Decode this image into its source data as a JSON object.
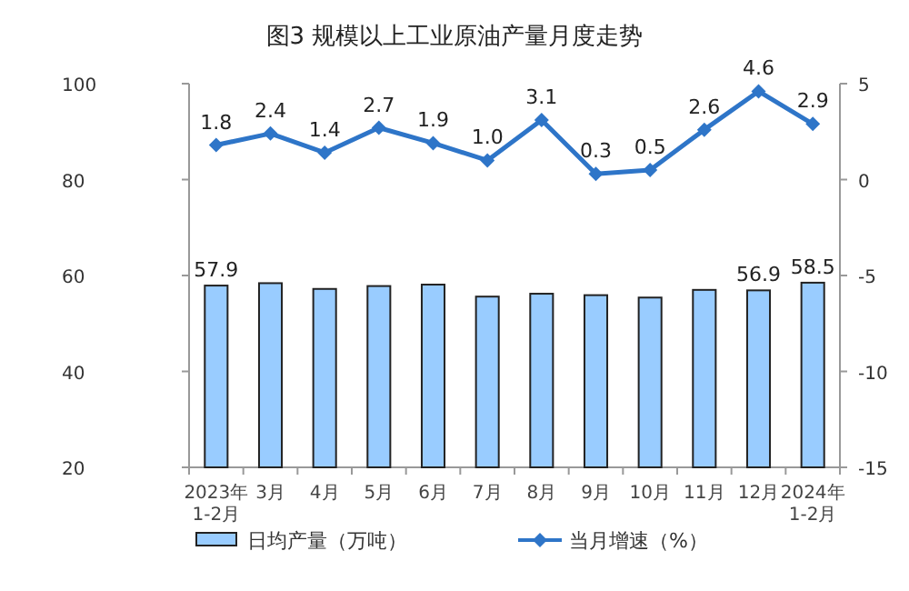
{
  "chart_data": {
    "type": "bar",
    "title": "图3  规模以上工业原油产量月度走势",
    "categories": [
      "2023年\n1-2月",
      "3月",
      "4月",
      "5月",
      "6月",
      "7月",
      "8月",
      "9月",
      "10月",
      "11月",
      "12月",
      "2024年\n1-2月"
    ],
    "ylim": [
      20,
      100
    ],
    "yticks": [
      20,
      40,
      60,
      80,
      100
    ],
    "y2lim": [
      -15,
      5
    ],
    "y2ticks": [
      -15,
      -10,
      -5,
      0,
      5
    ],
    "legend": "bottom",
    "marker": "diamond",
    "series": [
      {
        "name": "日均产量（万吨）",
        "color": "#99ccff",
        "values": [
          57.9,
          58.4,
          57.2,
          57.8,
          58.1,
          55.6,
          56.2,
          55.9,
          55.4,
          57.0,
          56.9,
          58.5
        ],
        "value_labels": [
          "57.9",
          null,
          null,
          null,
          null,
          null,
          null,
          null,
          null,
          null,
          "56.9",
          "58.5"
        ]
      },
      {
        "name": "当月增速（%）",
        "type": "line",
        "axis": "y2",
        "color": "#2e75c8",
        "values": [
          1.8,
          2.4,
          1.4,
          2.7,
          1.9,
          1.0,
          3.1,
          0.3,
          0.5,
          2.6,
          4.6,
          2.9
        ],
        "value_labels": [
          "1.8",
          "2.4",
          "1.4",
          "2.7",
          "1.9",
          "1.0",
          "3.1",
          "0.3",
          "0.5",
          "2.6",
          "4.6",
          "2.9"
        ]
      }
    ]
  }
}
